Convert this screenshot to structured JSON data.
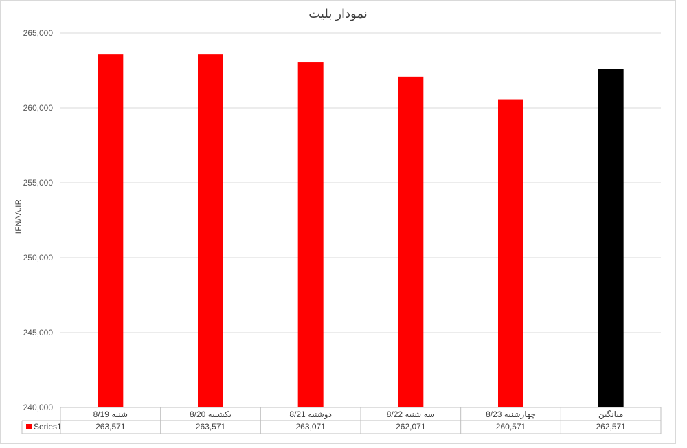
{
  "chart_data": {
    "type": "bar",
    "title": "نمودار بلیت",
    "ylabel": "IFNAA.IR",
    "xlabel": "",
    "ylim": [
      240000,
      265000
    ],
    "yticks": [
      "240,000",
      "245,000",
      "250,000",
      "255,000",
      "260,000",
      "265,000"
    ],
    "ytick_values": [
      240000,
      245000,
      250000,
      255000,
      260000,
      265000
    ],
    "categories": [
      "شنبه 8/19",
      "یکشنبه 8/20",
      "دوشنبه 8/21",
      "سه شنبه 8/22",
      "چهارشنبه 8/23",
      "میانگین"
    ],
    "series": [
      {
        "name": "Series1",
        "values": [
          263571,
          263571,
          263071,
          262071,
          260571,
          262571
        ],
        "value_labels": [
          "263,571",
          "263,571",
          "263,071",
          "262,071",
          "260,571",
          "262,571"
        ],
        "colors": [
          "#ff0000",
          "#ff0000",
          "#ff0000",
          "#ff0000",
          "#ff0000",
          "#000000"
        ]
      }
    ],
    "grid": true,
    "legend": "data-table",
    "legend_color": "#ff0000"
  }
}
